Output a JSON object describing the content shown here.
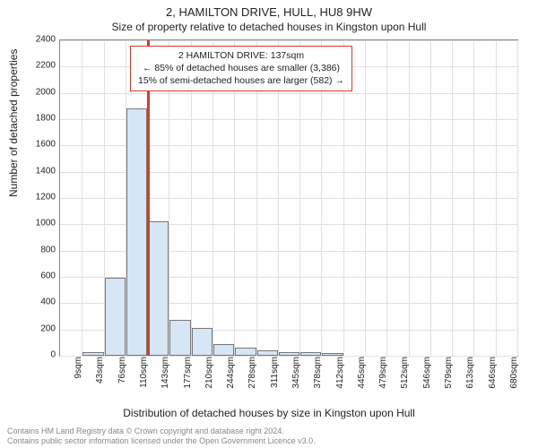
{
  "title": "2, HAMILTON DRIVE, HULL, HU8 9HW",
  "subtitle": "Size of property relative to detached houses in Kingston upon Hull",
  "chart": {
    "type": "histogram",
    "ylabel": "Number of detached properties",
    "xlabel": "Distribution of detached houses by size in Kingston upon Hull",
    "ylim": [
      0,
      2400
    ],
    "yticks": [
      0,
      200,
      400,
      600,
      800,
      1000,
      1200,
      1400,
      1600,
      1800,
      2000,
      2200,
      2400
    ],
    "bar_categories": [
      "9sqm",
      "43sqm",
      "76sqm",
      "110sqm",
      "143sqm",
      "177sqm",
      "210sqm",
      "244sqm",
      "278sqm",
      "311sqm",
      "345sqm",
      "378sqm",
      "412sqm",
      "445sqm",
      "479sqm",
      "512sqm",
      "546sqm",
      "579sqm",
      "613sqm",
      "646sqm",
      "680sqm"
    ],
    "bar_values": [
      0,
      30,
      590,
      1880,
      1020,
      270,
      210,
      90,
      60,
      40,
      30,
      30,
      20,
      0,
      0,
      0,
      0,
      0,
      0,
      0,
      0
    ],
    "bar_fill": "#d7e6f5",
    "bar_border": "#777777",
    "grid_color": "#e0e0e0",
    "background_color": "#ffffff",
    "axis_fontsize": 10,
    "label_fontsize": 12,
    "title_fontsize": 13,
    "marker_value_sqm": 137,
    "marker_color": "#d43b2f",
    "callout": {
      "line1": "2 HAMILTON DRIVE: 137sqm",
      "line2": "← 85% of detached houses are smaller (3,386)",
      "line3": "15% of semi-detached houses are larger (582) →",
      "border_color": "#d43b2f"
    }
  },
  "footer": {
    "line1": "Contains HM Land Registry data © Crown copyright and database right 2024.",
    "line2": "Contains public sector information licensed under the Open Government Licence v3.0."
  }
}
